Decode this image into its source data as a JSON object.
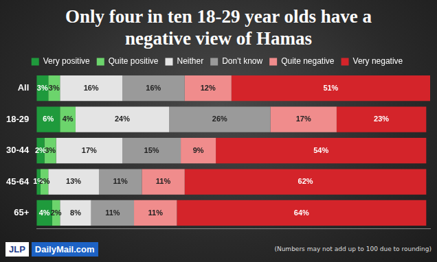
{
  "chart_data": {
    "type": "bar",
    "title": "Only four in ten 18-29 year olds have a negative view of Hamas",
    "orientation": "horizontal",
    "stacked": true,
    "data_labels": true,
    "legend": "top",
    "grid": false,
    "tick_labels": "y",
    "xlim": [
      0,
      101
    ],
    "categories": [
      "All",
      "18-29",
      "30-44",
      "45-64",
      "65+"
    ],
    "series": [
      {
        "name": "Very positive",
        "color": "#1f9a3c",
        "values": [
          3,
          6,
          2,
          1,
          4
        ],
        "value_labels": [
          "3%",
          "6%",
          "2%",
          "1%",
          "4%"
        ]
      },
      {
        "name": "Quite positive",
        "color": "#6cd46c",
        "values": [
          3,
          4,
          3,
          2,
          2
        ],
        "value_labels": [
          "3%",
          "4%",
          "3%",
          "2%",
          "2%"
        ]
      },
      {
        "name": "Neither",
        "color": "#e4e4e4",
        "values": [
          16,
          24,
          17,
          13,
          8
        ],
        "value_labels": [
          "16%",
          "24%",
          "17%",
          "13%",
          "8%"
        ]
      },
      {
        "name": "Don't know",
        "color": "#9a9a9a",
        "values": [
          16,
          26,
          15,
          11,
          11
        ],
        "value_labels": [
          "16%",
          "26%",
          "15%",
          "11%",
          "11%"
        ]
      },
      {
        "name": "Quite negative",
        "color": "#f08c8c",
        "values": [
          12,
          17,
          9,
          11,
          11
        ],
        "value_labels": [
          "12%",
          "17%",
          "9%",
          "11%",
          "11%"
        ]
      },
      {
        "name": "Very negative",
        "color": "#d4242a",
        "values": [
          51,
          23,
          54,
          62,
          64
        ],
        "value_labels": [
          "51%",
          "23%",
          "54%",
          "62%",
          "64%"
        ]
      }
    ],
    "logos": [
      "JLP",
      "DailyMail.com"
    ],
    "annotations": [
      "(Numbers may not add up to 100 due to rounding)"
    ]
  }
}
